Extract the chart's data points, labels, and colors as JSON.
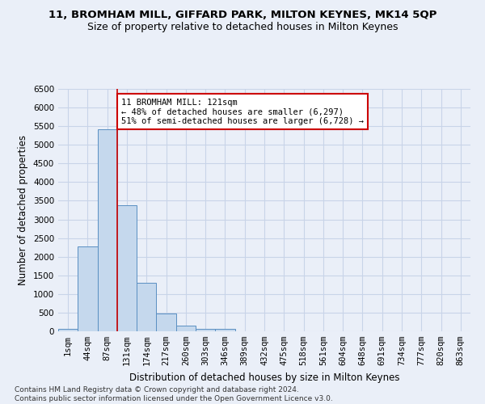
{
  "title_line1": "11, BROMHAM MILL, GIFFARD PARK, MILTON KEYNES, MK14 5QP",
  "title_line2": "Size of property relative to detached houses in Milton Keynes",
  "xlabel": "Distribution of detached houses by size in Milton Keynes",
  "ylabel": "Number of detached properties",
  "footer": "Contains HM Land Registry data © Crown copyright and database right 2024.\nContains public sector information licensed under the Open Government Licence v3.0.",
  "bar_labels": [
    "1sqm",
    "44sqm",
    "87sqm",
    "131sqm",
    "174sqm",
    "217sqm",
    "260sqm",
    "303sqm",
    "346sqm",
    "389sqm",
    "432sqm",
    "475sqm",
    "518sqm",
    "561sqm",
    "604sqm",
    "648sqm",
    "691sqm",
    "734sqm",
    "777sqm",
    "820sqm",
    "863sqm"
  ],
  "bar_values": [
    60,
    2280,
    5420,
    3370,
    1290,
    470,
    155,
    75,
    55,
    0,
    0,
    0,
    0,
    0,
    0,
    0,
    0,
    0,
    0,
    0,
    0
  ],
  "bar_color": "#c5d8ed",
  "bar_edge_color": "#5a8fc2",
  "annotation_text": "11 BROMHAM MILL: 121sqm\n← 48% of detached houses are smaller (6,297)\n51% of semi-detached houses are larger (6,728) →",
  "annotation_box_color": "#ffffff",
  "annotation_box_edge_color": "#cc0000",
  "property_line_x": 2.5,
  "property_line_color": "#cc0000",
  "ylim": [
    0,
    6500
  ],
  "yticks": [
    0,
    500,
    1000,
    1500,
    2000,
    2500,
    3000,
    3500,
    4000,
    4500,
    5000,
    5500,
    6000,
    6500
  ],
  "grid_color": "#c8d4e8",
  "background_color": "#eaeff8",
  "title_fontsize": 9.5,
  "subtitle_fontsize": 9,
  "axis_label_fontsize": 8.5,
  "tick_fontsize": 7.5,
  "annotation_fontsize": 7.5,
  "footer_fontsize": 6.5
}
